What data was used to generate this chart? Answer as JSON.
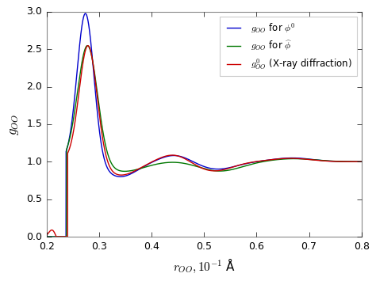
{
  "xlabel": "$r_{OO},10^{-1}$ Å",
  "ylabel": "$g_{OO}$",
  "xlim": [
    0.2,
    0.8
  ],
  "ylim": [
    0.0,
    3.0
  ],
  "xticks": [
    0.2,
    0.3,
    0.4,
    0.5,
    0.6,
    0.7,
    0.8
  ],
  "yticks": [
    0.0,
    0.5,
    1.0,
    1.5,
    2.0,
    2.5,
    3.0
  ],
  "line_blue_label": "$g_{OO}$ for $\\phi^0$",
  "line_green_label": "$g_{OO}$ for $\\widehat{\\phi}$",
  "line_red_label": "$g^0_{OO}$ (X-ray diffraction)",
  "line_blue_color": "#0000cc",
  "line_green_color": "#007700",
  "line_red_color": "#cc0000",
  "legend_loc": "upper right",
  "figsize": [
    4.74,
    3.55
  ],
  "dpi": 100,
  "bg_color": "#ffffff",
  "spine_color": "#888888"
}
